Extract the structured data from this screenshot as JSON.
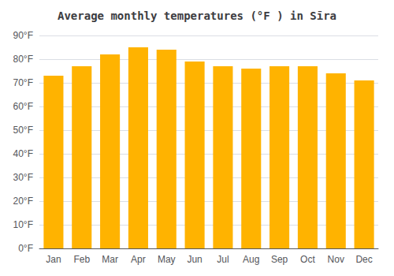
{
  "chart_data": {
    "type": "bar",
    "title": "Average monthly temperatures (°F ) in Sīra",
    "categories": [
      "Jan",
      "Feb",
      "Mar",
      "Apr",
      "May",
      "Jun",
      "Jul",
      "Aug",
      "Sep",
      "Oct",
      "Nov",
      "Dec"
    ],
    "values": [
      73,
      77,
      82,
      85,
      84,
      79,
      77,
      76,
      77,
      77,
      74,
      71
    ],
    "color": "#FFB300",
    "ylim": [
      0,
      90
    ],
    "yticks": [
      {
        "value": 0,
        "label": "0°F"
      },
      {
        "value": 10,
        "label": "10°F"
      },
      {
        "value": 20,
        "label": "20°F"
      },
      {
        "value": 30,
        "label": "30°F"
      },
      {
        "value": 40,
        "label": "40°F"
      },
      {
        "value": 50,
        "label": "50°F"
      },
      {
        "value": 60,
        "label": "60°F"
      },
      {
        "value": 70,
        "label": "70°F"
      },
      {
        "value": 80,
        "label": "80°F"
      },
      {
        "value": 90,
        "label": "90°F"
      }
    ],
    "grid": true
  }
}
